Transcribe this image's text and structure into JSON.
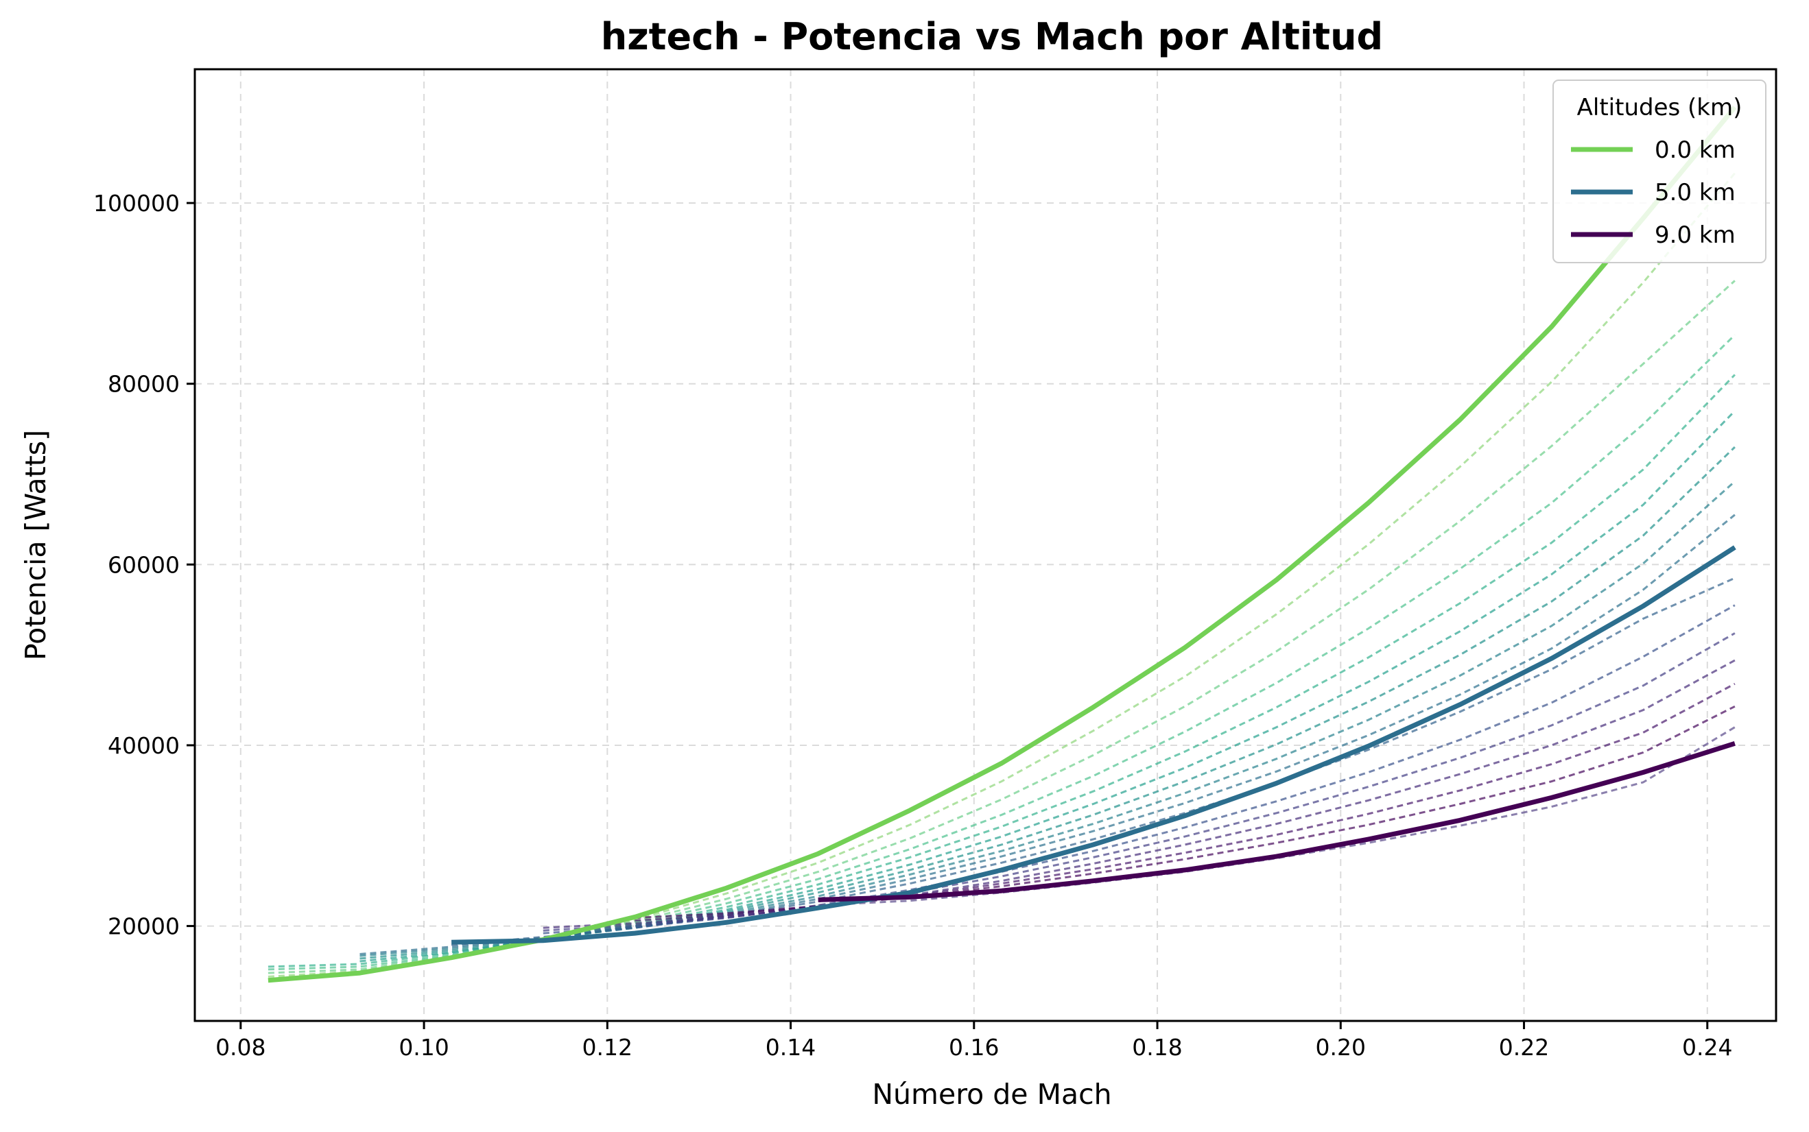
{
  "chart_data": {
    "type": "line",
    "title": "hztech - Potencia vs Mach por Altitud",
    "xlabel": "Número de Mach",
    "ylabel": "Potencia [Watts]",
    "xlim": [
      0.075,
      0.2475
    ],
    "ylim": [
      9500,
      114800
    ],
    "xticks": [
      0.08,
      0.1,
      0.12,
      0.14,
      0.16,
      0.18,
      0.2,
      0.22,
      0.24
    ],
    "xtick_labels": [
      "0.08",
      "0.10",
      "0.12",
      "0.14",
      "0.16",
      "0.18",
      "0.20",
      "0.22",
      "0.24"
    ],
    "yticks": [
      20000,
      40000,
      60000,
      80000,
      100000
    ],
    "ytick_labels": [
      "20000",
      "40000",
      "60000",
      "80000",
      "100000"
    ],
    "grid": true,
    "legend": {
      "title": "Altitudes (km)",
      "placement": "top-right",
      "entries": [
        "0.0 km",
        "5.0 km",
        "9.0 km"
      ]
    },
    "colors": {
      "alt_0": "#73d055",
      "alt_5": "#2c6e8e",
      "alt_9": "#440154"
    },
    "series": [
      {
        "name": "0.0 km",
        "style": "solid",
        "color": "#73d055",
        "x": [
          0.083,
          0.093,
          0.103,
          0.113,
          0.123,
          0.133,
          0.143,
          0.153,
          0.163,
          0.173,
          0.183,
          0.193,
          0.203,
          0.213,
          0.223,
          0.233,
          0.243
        ],
        "y": [
          14000,
          14800,
          16500,
          18500,
          21000,
          24200,
          28000,
          32800,
          38000,
          44200,
          50800,
          58300,
          66800,
          76000,
          86300,
          98300,
          110600
        ]
      },
      {
        "name": "5.0 km",
        "style": "solid",
        "color": "#2c6e8e",
        "x": [
          0.103,
          0.113,
          0.123,
          0.133,
          0.143,
          0.153,
          0.163,
          0.173,
          0.183,
          0.193,
          0.203,
          0.213,
          0.223,
          0.233,
          0.243
        ],
        "y": [
          18200,
          18400,
          19200,
          20400,
          22000,
          23700,
          26200,
          29000,
          32200,
          35800,
          39900,
          44500,
          49600,
          55400,
          61900
        ]
      },
      {
        "name": "9.0 km",
        "style": "solid",
        "color": "#440154",
        "x": [
          0.143,
          0.153,
          0.163,
          0.173,
          0.183,
          0.193,
          0.203,
          0.213,
          0.223,
          0.233,
          0.243
        ],
        "y": [
          22900,
          23200,
          23900,
          25000,
          26200,
          27700,
          29600,
          31700,
          34200,
          37000,
          40200
        ]
      },
      {
        "style": "dashed",
        "color": "#8fd67a",
        "x": [
          0.083,
          0.093,
          0.103,
          0.113,
          0.123,
          0.133,
          0.143,
          0.153,
          0.163,
          0.173,
          0.183,
          0.193,
          0.203,
          0.213,
          0.223,
          0.233,
          0.243
        ],
        "y": [
          14400,
          15000,
          16600,
          18500,
          20700,
          23600,
          27000,
          31200,
          36000,
          41600,
          47600,
          54500,
          62200,
          70800,
          80200,
          91200,
          103300
        ]
      },
      {
        "style": "dashed",
        "color": "#6ccf8a",
        "x": [
          0.083,
          0.093,
          0.103,
          0.113,
          0.123,
          0.133,
          0.143,
          0.153,
          0.163,
          0.173,
          0.183,
          0.193,
          0.203,
          0.213,
          0.223,
          0.233,
          0.243
        ],
        "y": [
          14800,
          15200,
          16700,
          18500,
          20500,
          23000,
          26000,
          29700,
          34000,
          38900,
          44300,
          50400,
          57200,
          64800,
          73100,
          82200,
          91400
        ]
      },
      {
        "style": "dashed",
        "color": "#4dc28f",
        "x": [
          0.083,
          0.093,
          0.103,
          0.113,
          0.123,
          0.133,
          0.143,
          0.153,
          0.163,
          0.173,
          0.183,
          0.193,
          0.203,
          0.213,
          0.223,
          0.233,
          0.243
        ],
        "y": [
          15200,
          15500,
          16800,
          18500,
          20300,
          22500,
          25200,
          28500,
          32300,
          36600,
          41500,
          46900,
          52900,
          59500,
          66800,
          75500,
          85400
        ]
      },
      {
        "style": "dashed",
        "color": "#35b28f",
        "x": [
          0.083,
          0.093,
          0.103,
          0.113,
          0.123,
          0.133,
          0.143,
          0.153,
          0.163,
          0.173,
          0.183,
          0.193,
          0.203,
          0.213,
          0.223,
          0.233,
          0.243
        ],
        "y": [
          15500,
          15800,
          17000,
          18500,
          20100,
          22100,
          24600,
          27600,
          31000,
          34900,
          39300,
          44200,
          49700,
          55700,
          62400,
          70500,
          81000
        ]
      },
      {
        "style": "dashed",
        "color": "#25a18e",
        "x": [
          0.093,
          0.103,
          0.113,
          0.123,
          0.133,
          0.143,
          0.153,
          0.163,
          0.173,
          0.183,
          0.193,
          0.203,
          0.213,
          0.223,
          0.233,
          0.243
        ],
        "y": [
          16100,
          17100,
          18500,
          20000,
          21800,
          24100,
          26800,
          29900,
          33500,
          37500,
          42000,
          47000,
          52600,
          58900,
          66600,
          77000
        ]
      },
      {
        "style": "dashed",
        "color": "#21918c",
        "x": [
          0.093,
          0.103,
          0.113,
          0.123,
          0.133,
          0.143,
          0.153,
          0.163,
          0.173,
          0.183,
          0.193,
          0.203,
          0.213,
          0.223,
          0.233,
          0.243
        ],
        "y": [
          16400,
          17300,
          18500,
          19900,
          21600,
          23700,
          26200,
          29000,
          32300,
          36000,
          40100,
          44800,
          50000,
          55900,
          63200,
          73000
        ]
      },
      {
        "style": "dashed",
        "color": "#28818e",
        "x": [
          0.093,
          0.103,
          0.113,
          0.123,
          0.133,
          0.143,
          0.153,
          0.163,
          0.173,
          0.183,
          0.193,
          0.203,
          0.213,
          0.223,
          0.233,
          0.243
        ],
        "y": [
          16700,
          17500,
          18600,
          19800,
          21400,
          23300,
          25700,
          28300,
          31300,
          34700,
          38500,
          42800,
          47700,
          53200,
          60100,
          69200
        ]
      },
      {
        "style": "dashed",
        "color": "#2e718e",
        "x": [
          0.093,
          0.103,
          0.113,
          0.123,
          0.133,
          0.143,
          0.153,
          0.163,
          0.173,
          0.183,
          0.193,
          0.203,
          0.213,
          0.223,
          0.233,
          0.243
        ],
        "y": [
          16900,
          17700,
          18700,
          19800,
          21200,
          23000,
          25200,
          27700,
          30500,
          33600,
          37100,
          41100,
          45600,
          50700,
          57200,
          65500
        ]
      },
      {
        "style": "dashed",
        "color": "#33628d",
        "x": [
          0.103,
          0.113,
          0.123,
          0.133,
          0.143,
          0.153,
          0.163,
          0.173,
          0.183,
          0.193,
          0.203,
          0.213,
          0.223,
          0.233,
          0.243
        ],
        "y": [
          17900,
          18800,
          19800,
          21100,
          22700,
          24700,
          27000,
          29600,
          32500,
          35800,
          39500,
          43700,
          48400,
          54000,
          58500
        ]
      },
      {
        "style": "dashed",
        "color": "#3b528b",
        "x": [
          0.113,
          0.123,
          0.133,
          0.143,
          0.153,
          0.163,
          0.173,
          0.183,
          0.193,
          0.203,
          0.213,
          0.223,
          0.233,
          0.243
        ],
        "y": [
          19200,
          19900,
          20900,
          22300,
          24000,
          26000,
          28300,
          30900,
          33800,
          37000,
          40600,
          44700,
          49800,
          55500
        ]
      },
      {
        "style": "dashed",
        "color": "#433e85",
        "x": [
          0.113,
          0.123,
          0.133,
          0.143,
          0.153,
          0.163,
          0.173,
          0.183,
          0.193,
          0.203,
          0.213,
          0.223,
          0.233,
          0.243
        ],
        "y": [
          19500,
          20100,
          20900,
          22200,
          23700,
          25500,
          27600,
          29900,
          32500,
          35400,
          38600,
          42200,
          46600,
          52400
        ]
      },
      {
        "style": "dashed",
        "color": "#472d7b",
        "x": [
          0.113,
          0.123,
          0.133,
          0.143,
          0.153,
          0.163,
          0.173,
          0.183,
          0.193,
          0.203,
          0.213,
          0.223,
          0.233,
          0.243
        ],
        "y": [
          19800,
          20300,
          21000,
          22100,
          23400,
          25000,
          26900,
          29000,
          31300,
          33900,
          36800,
          40000,
          43900,
          49400
        ]
      },
      {
        "style": "dashed",
        "color": "#481a6c",
        "x": [
          0.123,
          0.133,
          0.143,
          0.153,
          0.163,
          0.173,
          0.183,
          0.193,
          0.203,
          0.213,
          0.223,
          0.233,
          0.243
        ],
        "y": [
          20600,
          21200,
          22200,
          23300,
          24700,
          26300,
          28100,
          30100,
          32400,
          35000,
          37900,
          41400,
          46800
        ]
      },
      {
        "style": "dashed",
        "color": "#46085c",
        "x": [
          0.123,
          0.133,
          0.143,
          0.153,
          0.163,
          0.173,
          0.183,
          0.193,
          0.203,
          0.213,
          0.223,
          0.233,
          0.243
        ],
        "y": [
          20900,
          21400,
          22200,
          23200,
          24400,
          25800,
          27400,
          29200,
          31200,
          33500,
          36000,
          39200,
          44300
        ]
      },
      {
        "style": "dashed",
        "color": "#5a4a8a",
        "x": [
          0.143,
          0.153,
          0.163,
          0.173,
          0.183,
          0.193,
          0.203,
          0.213,
          0.223,
          0.233,
          0.243
        ],
        "y": [
          22300,
          22800,
          23700,
          24800,
          26000,
          27500,
          29200,
          31100,
          33200,
          35900,
          42000
        ]
      }
    ]
  }
}
